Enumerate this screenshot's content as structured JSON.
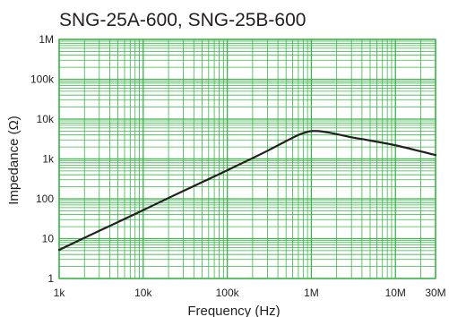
{
  "chart_data": {
    "type": "line",
    "title": "SNG-25A-600, SNG-25B-600",
    "xlabel": "Frequency (Hz)",
    "ylabel": "Impedance (Ω)",
    "x_scale": "log",
    "y_scale": "log",
    "xlim": [
      1000,
      30000000
    ],
    "ylim": [
      1,
      1000000
    ],
    "x_ticks": [
      {
        "value": 1000,
        "label": "1k"
      },
      {
        "value": 10000,
        "label": "10k"
      },
      {
        "value": 100000,
        "label": "100k"
      },
      {
        "value": 1000000,
        "label": "1M"
      },
      {
        "value": 10000000,
        "label": "10M"
      },
      {
        "value": 30000000,
        "label": "30M"
      }
    ],
    "y_ticks": [
      {
        "value": 1,
        "label": "1"
      },
      {
        "value": 10,
        "label": "10"
      },
      {
        "value": 100,
        "label": "100"
      },
      {
        "value": 1000,
        "label": "1k"
      },
      {
        "value": 10000,
        "label": "10k"
      },
      {
        "value": 100000,
        "label": "100k"
      },
      {
        "value": 1000000,
        "label": "1M"
      }
    ],
    "grid": true,
    "colors": {
      "grid": "#3cb54a",
      "line": "#231f20",
      "text": "#231f20"
    },
    "series": [
      {
        "x": [
          1000,
          2000,
          5000,
          10000,
          20000,
          50000,
          100000,
          200000,
          300000,
          500000,
          700000,
          900000,
          1000000,
          1200000,
          1500000,
          2000000,
          3000000,
          5000000,
          10000000,
          20000000,
          30000000
        ],
        "y": [
          5.2,
          10.5,
          26,
          52,
          105,
          260,
          520,
          1050,
          1600,
          2800,
          4000,
          4800,
          5000,
          5000,
          4700,
          4200,
          3500,
          2900,
          2200,
          1550,
          1250
        ]
      }
    ]
  }
}
